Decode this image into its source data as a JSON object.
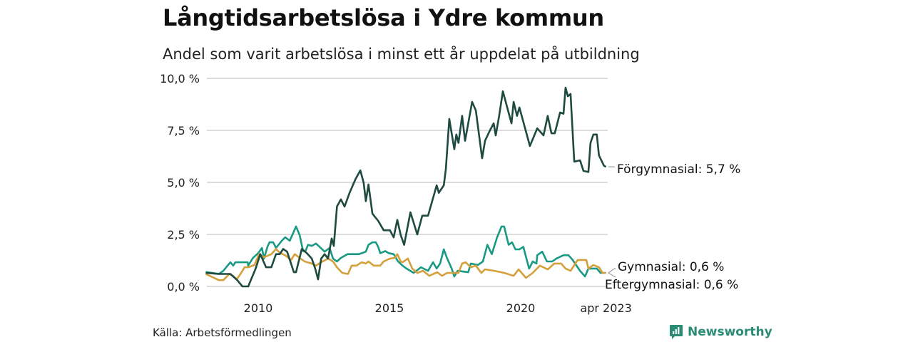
{
  "title": "Långtidsarbetslösa i Ydre kommun",
  "subtitle": "Andel som varit arbetslösa i minst ett år uppdelat på utbildning",
  "source": "Källa: Arbetsförmedlingen",
  "brand": "Newsworthy",
  "chart_data": {
    "type": "line",
    "title": "Långtidsarbetslösa i Ydre kommun",
    "xlabel": "",
    "ylabel": "",
    "ylim": [
      0,
      10
    ],
    "xlim": [
      2008.0,
      2023.25
    ],
    "grid": true,
    "y_ticks": [
      {
        "value": 0,
        "label": "0,0 %"
      },
      {
        "value": 2.5,
        "label": "2,5 %"
      },
      {
        "value": 5,
        "label": "5,0 %"
      },
      {
        "value": 7.5,
        "label": "7,5 %"
      },
      {
        "value": 10,
        "label": "10,0 %"
      }
    ],
    "x_ticks": [
      {
        "value": 2010,
        "label": "2010"
      },
      {
        "value": 2015,
        "label": "2015"
      },
      {
        "value": 2020,
        "label": "2020"
      },
      {
        "value": 2023.25,
        "label": "apr 2023"
      }
    ],
    "series": [
      {
        "name": "Gymnasial",
        "end_label": "Gymnasial: 0,6 %",
        "color": "#1a9985",
        "points": [
          [
            2008.0,
            0.7
          ],
          [
            2008.5,
            0.6
          ],
          [
            2008.67,
            0.75
          ],
          [
            2008.94,
            1.16
          ],
          [
            2009.05,
            1.0
          ],
          [
            2009.13,
            1.16
          ],
          [
            2009.6,
            1.16
          ],
          [
            2009.62,
            1.0
          ],
          [
            2009.8,
            1.37
          ],
          [
            2010,
            1.6
          ],
          [
            2010.14,
            1.85
          ],
          [
            2010.22,
            1.34
          ],
          [
            2010.35,
            1.9
          ],
          [
            2010.43,
            2.12
          ],
          [
            2010.57,
            2.12
          ],
          [
            2010.68,
            1.85
          ],
          [
            2010.9,
            2.2
          ],
          [
            2011.03,
            2.36
          ],
          [
            2011.2,
            2.2
          ],
          [
            2011.3,
            2.47
          ],
          [
            2011.44,
            2.88
          ],
          [
            2011.58,
            2.47
          ],
          [
            2011.71,
            1.7
          ],
          [
            2011.8,
            1.7
          ],
          [
            2011.9,
            2.0
          ],
          [
            2012.04,
            1.95
          ],
          [
            2012.2,
            2.06
          ],
          [
            2012.3,
            1.95
          ],
          [
            2012.53,
            1.67
          ],
          [
            2012.72,
            1.85
          ],
          [
            2012.85,
            1.34
          ],
          [
            2013.0,
            1.2
          ],
          [
            2013.15,
            1.37
          ],
          [
            2013.4,
            1.55
          ],
          [
            2013.83,
            1.55
          ],
          [
            2013.95,
            1.6
          ],
          [
            2014.1,
            1.67
          ],
          [
            2014.2,
            2.0
          ],
          [
            2014.35,
            2.12
          ],
          [
            2014.48,
            2.12
          ],
          [
            2014.57,
            1.9
          ],
          [
            2014.65,
            1.6
          ],
          [
            2014.84,
            1.7
          ],
          [
            2014.97,
            1.6
          ],
          [
            2015.16,
            1.55
          ],
          [
            2015.33,
            1.2
          ],
          [
            2015.5,
            1.0
          ],
          [
            2015.65,
            0.86
          ],
          [
            2015.92,
            0.65
          ],
          [
            2016.2,
            0.92
          ],
          [
            2016.47,
            0.75
          ],
          [
            2016.66,
            1.16
          ],
          [
            2016.8,
            0.86
          ],
          [
            2016.93,
            1.1
          ],
          [
            2017.07,
            1.78
          ],
          [
            2017.2,
            1.34
          ],
          [
            2017.37,
            0.86
          ],
          [
            2017.47,
            0.48
          ],
          [
            2017.6,
            0.75
          ],
          [
            2018.0,
            0.68
          ],
          [
            2018.1,
            1.1
          ],
          [
            2018.37,
            1.03
          ],
          [
            2018.56,
            1.2
          ],
          [
            2018.73,
            2.0
          ],
          [
            2018.9,
            1.55
          ],
          [
            2019.1,
            2.36
          ],
          [
            2019.27,
            2.88
          ],
          [
            2019.37,
            2.88
          ],
          [
            2019.54,
            2.0
          ],
          [
            2019.67,
            2.12
          ],
          [
            2019.8,
            1.78
          ],
          [
            2019.95,
            1.78
          ],
          [
            2020.1,
            1.9
          ],
          [
            2020.32,
            0.86
          ],
          [
            2020.46,
            1.2
          ],
          [
            2020.6,
            1.1
          ],
          [
            2020.63,
            1.5
          ],
          [
            2020.82,
            1.67
          ],
          [
            2021.0,
            1.2
          ],
          [
            2021.2,
            1.2
          ],
          [
            2021.36,
            1.34
          ],
          [
            2021.63,
            1.5
          ],
          [
            2021.82,
            1.5
          ],
          [
            2021.98,
            1.27
          ],
          [
            2022.26,
            0.75
          ],
          [
            2022.45,
            0.48
          ],
          [
            2022.58,
            0.86
          ],
          [
            2022.9,
            0.86
          ],
          [
            2023.04,
            0.65
          ],
          [
            2023.25,
            0.65
          ]
        ]
      },
      {
        "name": "Eftergymnasial",
        "end_label": "Eftergymnasial: 0,6 %",
        "color": "#d4a03c",
        "points": [
          [
            2008.0,
            0.6
          ],
          [
            2008.5,
            0.3
          ],
          [
            2008.67,
            0.3
          ],
          [
            2008.9,
            0.6
          ],
          [
            2009.05,
            0.5
          ],
          [
            2009.18,
            0.34
          ],
          [
            2009.35,
            0.65
          ],
          [
            2009.48,
            0.92
          ],
          [
            2009.62,
            0.92
          ],
          [
            2009.86,
            1.03
          ],
          [
            2010.03,
            1.55
          ],
          [
            2010.22,
            1.4
          ],
          [
            2010.5,
            1.55
          ],
          [
            2010.68,
            1.8
          ],
          [
            2010.84,
            1.6
          ],
          [
            2011.03,
            1.5
          ],
          [
            2011.25,
            1.27
          ],
          [
            2011.39,
            1.55
          ],
          [
            2011.58,
            1.37
          ],
          [
            2011.77,
            1.2
          ],
          [
            2012.04,
            1.1
          ],
          [
            2012.2,
            1.0
          ],
          [
            2012.4,
            1.16
          ],
          [
            2012.66,
            1.34
          ],
          [
            2012.85,
            1.2
          ],
          [
            2013.0,
            0.92
          ],
          [
            2013.2,
            0.65
          ],
          [
            2013.42,
            0.6
          ],
          [
            2013.56,
            1.0
          ],
          [
            2013.75,
            1.0
          ],
          [
            2013.94,
            1.16
          ],
          [
            2014.1,
            1.1
          ],
          [
            2014.2,
            1.2
          ],
          [
            2014.4,
            1.0
          ],
          [
            2014.65,
            1.0
          ],
          [
            2014.78,
            1.2
          ],
          [
            2015.02,
            1.34
          ],
          [
            2015.2,
            1.37
          ],
          [
            2015.3,
            1.55
          ],
          [
            2015.43,
            1.2
          ],
          [
            2015.5,
            1.16
          ],
          [
            2015.7,
            1.34
          ],
          [
            2015.87,
            0.86
          ],
          [
            2016.06,
            0.65
          ],
          [
            2016.28,
            0.75
          ],
          [
            2016.52,
            0.51
          ],
          [
            2016.82,
            0.68
          ],
          [
            2017.0,
            0.51
          ],
          [
            2017.2,
            0.65
          ],
          [
            2017.63,
            0.65
          ],
          [
            2017.77,
            1.1
          ],
          [
            2017.9,
            1.16
          ],
          [
            2018.1,
            0.92
          ],
          [
            2018.29,
            1.0
          ],
          [
            2018.5,
            0.65
          ],
          [
            2018.64,
            0.82
          ],
          [
            2019.0,
            0.75
          ],
          [
            2019.37,
            0.65
          ],
          [
            2019.73,
            0.51
          ],
          [
            2019.92,
            0.82
          ],
          [
            2020.2,
            0.41
          ],
          [
            2020.46,
            0.65
          ],
          [
            2020.73,
            1.0
          ],
          [
            2021.03,
            0.82
          ],
          [
            2021.28,
            1.1
          ],
          [
            2021.54,
            1.1
          ],
          [
            2021.71,
            0.86
          ],
          [
            2021.9,
            0.75
          ],
          [
            2022.17,
            1.27
          ],
          [
            2022.5,
            1.27
          ],
          [
            2022.58,
            0.86
          ],
          [
            2022.77,
            1.03
          ],
          [
            2022.98,
            0.92
          ],
          [
            2023.12,
            0.65
          ],
          [
            2023.25,
            0.65
          ]
        ]
      },
      {
        "name": "Förgymnasial",
        "end_label": "Förgymnasial: 5,7 %",
        "color": "#1e4a40",
        "points": [
          [
            2008.0,
            0.65
          ],
          [
            2008.5,
            0.6
          ],
          [
            2008.94,
            0.6
          ],
          [
            2009.2,
            0.3
          ],
          [
            2009.4,
            0.0
          ],
          [
            2009.62,
            0.0
          ],
          [
            2009.9,
            0.85
          ],
          [
            2010.08,
            1.55
          ],
          [
            2010.3,
            0.92
          ],
          [
            2010.5,
            0.92
          ],
          [
            2010.68,
            1.55
          ],
          [
            2010.82,
            1.55
          ],
          [
            2010.95,
            1.8
          ],
          [
            2011.1,
            1.67
          ],
          [
            2011.36,
            0.68
          ],
          [
            2011.44,
            0.68
          ],
          [
            2011.66,
            1.8
          ],
          [
            2011.85,
            1.6
          ],
          [
            2012.04,
            1.34
          ],
          [
            2012.17,
            0.86
          ],
          [
            2012.28,
            0.34
          ],
          [
            2012.4,
            1.34
          ],
          [
            2012.53,
            1.55
          ],
          [
            2012.66,
            1.34
          ],
          [
            2012.8,
            2.3
          ],
          [
            2012.88,
            1.95
          ],
          [
            2013.0,
            3.84
          ],
          [
            2013.15,
            4.18
          ],
          [
            2013.29,
            3.84
          ],
          [
            2013.48,
            4.5
          ],
          [
            2013.7,
            5.14
          ],
          [
            2013.89,
            5.58
          ],
          [
            2014.02,
            4.97
          ],
          [
            2014.1,
            4.1
          ],
          [
            2014.2,
            4.9
          ],
          [
            2014.35,
            3.5
          ],
          [
            2014.57,
            3.15
          ],
          [
            2014.78,
            2.7
          ],
          [
            2015.02,
            2.7
          ],
          [
            2015.16,
            2.36
          ],
          [
            2015.3,
            3.2
          ],
          [
            2015.43,
            2.47
          ],
          [
            2015.56,
            2.0
          ],
          [
            2015.8,
            3.56
          ],
          [
            2016.06,
            2.5
          ],
          [
            2016.25,
            3.4
          ],
          [
            2016.47,
            3.4
          ],
          [
            2016.8,
            4.86
          ],
          [
            2016.88,
            4.5
          ],
          [
            2017.07,
            4.86
          ],
          [
            2017.15,
            5.65
          ],
          [
            2017.28,
            8.05
          ],
          [
            2017.47,
            6.6
          ],
          [
            2017.55,
            7.3
          ],
          [
            2017.63,
            6.9
          ],
          [
            2017.77,
            8.2
          ],
          [
            2017.88,
            7.0
          ],
          [
            2018.15,
            8.87
          ],
          [
            2018.29,
            8.46
          ],
          [
            2018.53,
            6.16
          ],
          [
            2018.64,
            7.0
          ],
          [
            2018.83,
            7.5
          ],
          [
            2018.97,
            7.84
          ],
          [
            2019.05,
            7.26
          ],
          [
            2019.18,
            8.2
          ],
          [
            2019.32,
            9.38
          ],
          [
            2019.65,
            7.84
          ],
          [
            2019.73,
            8.87
          ],
          [
            2019.86,
            8.2
          ],
          [
            2019.95,
            8.6
          ],
          [
            2020.35,
            6.75
          ],
          [
            2020.63,
            7.6
          ],
          [
            2020.87,
            7.26
          ],
          [
            2021.03,
            8.2
          ],
          [
            2021.17,
            7.36
          ],
          [
            2021.3,
            7.36
          ],
          [
            2021.5,
            8.36
          ],
          [
            2021.63,
            8.3
          ],
          [
            2021.71,
            9.55
          ],
          [
            2021.8,
            9.14
          ],
          [
            2021.9,
            9.25
          ],
          [
            2022.04,
            6.0
          ],
          [
            2022.26,
            6.06
          ],
          [
            2022.39,
            5.55
          ],
          [
            2022.58,
            5.5
          ],
          [
            2022.66,
            6.9
          ],
          [
            2022.77,
            7.3
          ],
          [
            2022.9,
            7.3
          ],
          [
            2022.98,
            6.3
          ],
          [
            2023.17,
            5.8
          ],
          [
            2023.25,
            5.75
          ]
        ]
      }
    ]
  }
}
